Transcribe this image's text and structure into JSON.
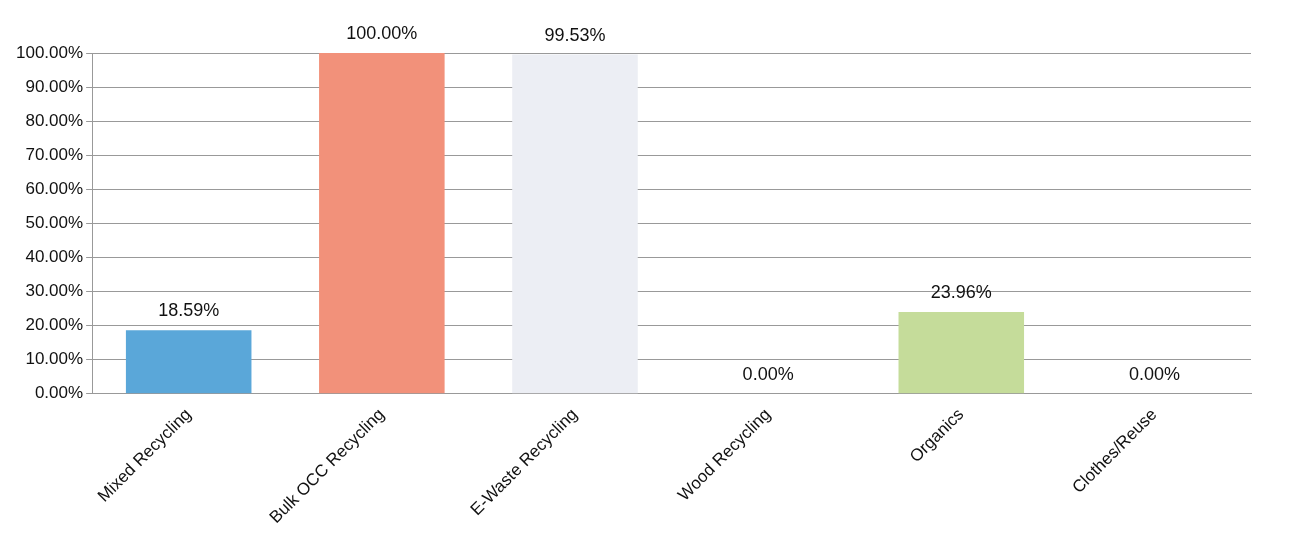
{
  "chart_data": {
    "type": "bar",
    "categories": [
      "Mixed Recycling",
      "Bulk OCC Recycling",
      "E-Waste Recycling",
      "Wood Recycling",
      "Organics",
      "Clothes/Reuse"
    ],
    "values": [
      18.59,
      100,
      99.53,
      0,
      23.96,
      0
    ],
    "colors": [
      "#5aa7d9",
      "#f2917a",
      "#eceef4",
      "#cccccc",
      "#c5dc9a",
      "#cccccc"
    ],
    "value_labels": [
      "18.59%",
      "100.00%",
      "99.53%",
      "0.00%",
      "23.96%",
      "0.00%"
    ],
    "ylim": [
      0,
      100
    ],
    "yticks": [
      {
        "value": 0,
        "label": "0.00%"
      },
      {
        "value": 10,
        "label": "10.00%"
      },
      {
        "value": 20,
        "label": "20.00%"
      },
      {
        "value": 30,
        "label": "30.00%"
      },
      {
        "value": 40,
        "label": "40.00%"
      },
      {
        "value": 50,
        "label": "50.00%"
      },
      {
        "value": 60,
        "label": "60.00%"
      },
      {
        "value": 70,
        "label": "70.00%"
      },
      {
        "value": 80,
        "label": "80.00%"
      },
      {
        "value": 90,
        "label": "90.00%"
      },
      {
        "value": 100,
        "label": "100.00%"
      }
    ],
    "grid": "y",
    "legend": false
  }
}
